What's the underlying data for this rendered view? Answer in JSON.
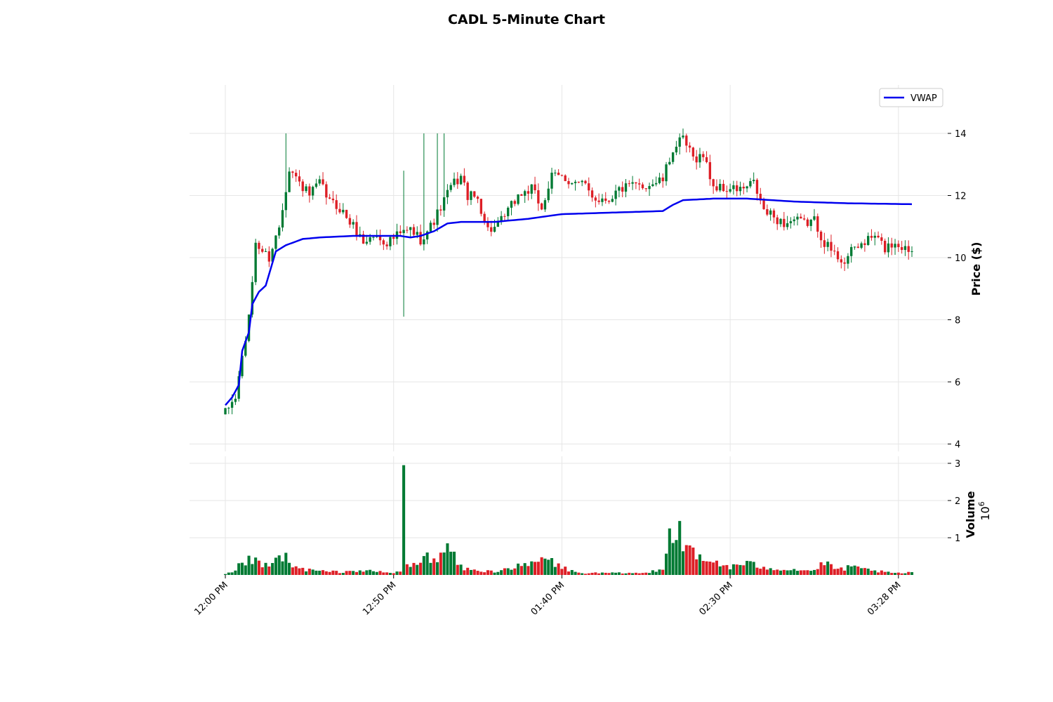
{
  "chart_data": {
    "type": "candlestick",
    "title": "CADL 5-Minute Chart",
    "price_panel": {
      "ylabel": "Price ($)",
      "ylim": [
        4,
        15.5
      ],
      "yticks": [
        4,
        6,
        8,
        10,
        12,
        14
      ],
      "ytick_labels": [
        "4",
        "6",
        "8",
        "10",
        "12",
        "14"
      ],
      "grid": true
    },
    "volume_panel": {
      "ylabel": "Volume",
      "scale_label": "10^6",
      "ylim": [
        0,
        3
      ],
      "yticks": [
        1,
        2,
        3
      ],
      "ytick_labels": [
        "1",
        "2",
        "3"
      ],
      "grid": true
    },
    "x_tick_labels": [
      "12:00 PM",
      "12:50 PM",
      "01:40 PM",
      "02:30 PM",
      "03:28 PM"
    ],
    "legend": {
      "entries": [
        "VWAP"
      ],
      "placement": "top-right"
    },
    "colors": {
      "up": "#007a33",
      "down": "#dd1f26",
      "vwap": "#0000ee",
      "grid": "#e6e6e6"
    },
    "price_anchor_points": [
      [
        0,
        5.0
      ],
      [
        3,
        5.5
      ],
      [
        5,
        6.8
      ],
      [
        7,
        8.0
      ],
      [
        9,
        10.5
      ],
      [
        11,
        10.2
      ],
      [
        13,
        10.0
      ],
      [
        16,
        11.0
      ],
      [
        19,
        12.9
      ],
      [
        22,
        12.4
      ],
      [
        25,
        12.0
      ],
      [
        28,
        12.4
      ],
      [
        31,
        11.8
      ],
      [
        34,
        11.6
      ],
      [
        38,
        11.0
      ],
      [
        41,
        10.5
      ],
      [
        44,
        10.7
      ],
      [
        48,
        10.5
      ],
      [
        51,
        10.7
      ],
      [
        55,
        10.9
      ],
      [
        58,
        10.6
      ],
      [
        61,
        11.0
      ],
      [
        64,
        11.6
      ],
      [
        67,
        12.3
      ],
      [
        70,
        12.6
      ],
      [
        72,
        12.0
      ],
      [
        75,
        11.9
      ],
      [
        78,
        10.9
      ],
      [
        81,
        11.0
      ],
      [
        84,
        11.5
      ],
      [
        87,
        12.0
      ],
      [
        91,
        12.2
      ],
      [
        94,
        11.6
      ],
      [
        97,
        12.6
      ],
      [
        100,
        12.6
      ],
      [
        104,
        12.4
      ],
      [
        107,
        12.3
      ],
      [
        110,
        11.9
      ],
      [
        114,
        11.9
      ],
      [
        117,
        12.2
      ],
      [
        121,
        12.3
      ],
      [
        124,
        12.3
      ],
      [
        127,
        12.4
      ],
      [
        130,
        12.5
      ],
      [
        133,
        13.5
      ],
      [
        136,
        13.8
      ],
      [
        139,
        13.2
      ],
      [
        142,
        13.3
      ],
      [
        145,
        12.3
      ],
      [
        148,
        12.2
      ],
      [
        151,
        12.2
      ],
      [
        154,
        12.2
      ],
      [
        157,
        12.4
      ],
      [
        160,
        11.5
      ],
      [
        163,
        11.3
      ],
      [
        166,
        11.1
      ],
      [
        169,
        11.2
      ],
      [
        172,
        11.1
      ],
      [
        175,
        11.2
      ],
      [
        178,
        10.5
      ],
      [
        181,
        10.1
      ],
      [
        184,
        9.9
      ],
      [
        187,
        10.3
      ],
      [
        190,
        10.5
      ],
      [
        193,
        10.7
      ],
      [
        196,
        10.3
      ],
      [
        199,
        10.5
      ],
      [
        202,
        10.3
      ],
      [
        204,
        10.25
      ]
    ],
    "vwap_anchor_points": [
      [
        0,
        5.25
      ],
      [
        2,
        5.5
      ],
      [
        4,
        5.9
      ],
      [
        5,
        7.0
      ],
      [
        7,
        7.6
      ],
      [
        8,
        8.5
      ],
      [
        10,
        8.9
      ],
      [
        12,
        9.1
      ],
      [
        15,
        10.2
      ],
      [
        18,
        10.4
      ],
      [
        23,
        10.6
      ],
      [
        28,
        10.65
      ],
      [
        38,
        10.7
      ],
      [
        52,
        10.7
      ],
      [
        55,
        10.65
      ],
      [
        58,
        10.7
      ],
      [
        62,
        10.85
      ],
      [
        66,
        11.1
      ],
      [
        70,
        11.15
      ],
      [
        80,
        11.15
      ],
      [
        90,
        11.25
      ],
      [
        100,
        11.4
      ],
      [
        130,
        11.5
      ],
      [
        133,
        11.7
      ],
      [
        136,
        11.85
      ],
      [
        145,
        11.9
      ],
      [
        155,
        11.9
      ],
      [
        170,
        11.8
      ],
      [
        185,
        11.75
      ],
      [
        204,
        11.72
      ]
    ],
    "volume_anchor_points": [
      [
        0,
        0.02
      ],
      [
        3,
        0.1
      ],
      [
        5,
        0.35
      ],
      [
        8,
        0.4
      ],
      [
        10,
        0.3
      ],
      [
        13,
        0.2
      ],
      [
        16,
        0.5
      ],
      [
        18,
        0.45
      ],
      [
        20,
        0.2
      ],
      [
        24,
        0.15
      ],
      [
        28,
        0.1
      ],
      [
        34,
        0.08
      ],
      [
        40,
        0.12
      ],
      [
        46,
        0.08
      ],
      [
        50,
        0.05
      ],
      [
        52,
        0.1
      ],
      [
        54,
        0.3
      ],
      [
        56,
        0.25
      ],
      [
        59,
        0.4
      ],
      [
        62,
        0.6
      ],
      [
        64,
        0.45
      ],
      [
        66,
        0.8
      ],
      [
        68,
        0.45
      ],
      [
        70,
        0.2
      ],
      [
        75,
        0.1
      ],
      [
        80,
        0.1
      ],
      [
        85,
        0.2
      ],
      [
        90,
        0.25
      ],
      [
        95,
        0.45
      ],
      [
        100,
        0.2
      ],
      [
        105,
        0.05
      ],
      [
        115,
        0.05
      ],
      [
        125,
        0.05
      ],
      [
        130,
        0.2
      ],
      [
        132,
        1.1
      ],
      [
        134,
        0.9
      ],
      [
        136,
        1.0
      ],
      [
        138,
        0.6
      ],
      [
        140,
        0.5
      ],
      [
        142,
        0.35
      ],
      [
        146,
        0.35
      ],
      [
        150,
        0.2
      ],
      [
        154,
        0.3
      ],
      [
        158,
        0.25
      ],
      [
        162,
        0.2
      ],
      [
        166,
        0.15
      ],
      [
        170,
        0.15
      ],
      [
        174,
        0.1
      ],
      [
        178,
        0.3
      ],
      [
        182,
        0.15
      ],
      [
        186,
        0.2
      ],
      [
        190,
        0.15
      ],
      [
        194,
        0.1
      ],
      [
        198,
        0.05
      ],
      [
        202,
        0.05
      ],
      [
        204,
        0.08
      ]
    ],
    "spikes": {
      "price": [
        [
          53,
          8.1,
          12.8
        ],
        [
          59,
          10.9,
          14.0
        ],
        [
          63,
          11.5,
          14.0
        ],
        [
          65,
          11.8,
          14.0
        ],
        [
          18,
          11.8,
          14.0
        ]
      ],
      "volume": [
        [
          53,
          2.95
        ],
        [
          132,
          1.25
        ],
        [
          135,
          1.45
        ],
        [
          66,
          0.85
        ]
      ]
    },
    "bar_count": 205
  }
}
